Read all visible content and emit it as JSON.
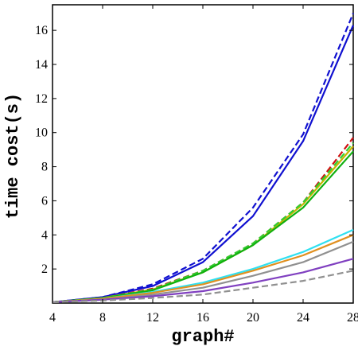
{
  "chart_data": {
    "type": "line",
    "title": "",
    "xlabel": "graph#",
    "ylabel": "time cost(s)",
    "x": [
      4,
      8,
      12,
      16,
      20,
      24,
      28
    ],
    "xlim": [
      4,
      28
    ],
    "ylim": [
      0,
      17.5
    ],
    "xticks": [
      "4",
      "8",
      "12",
      "16",
      "20",
      "24",
      "28"
    ],
    "yticks": [
      "2",
      "4",
      "6",
      "8",
      "10",
      "12",
      "14",
      "16"
    ],
    "grid": false,
    "legend": "none",
    "series": [
      {
        "color": "#1010d0",
        "style": "solid",
        "values": [
          0.05,
          0.35,
          1.0,
          2.4,
          5.1,
          9.5,
          16.3
        ]
      },
      {
        "color": "#1010d0",
        "style": "dashed",
        "values": [
          0.05,
          0.35,
          1.1,
          2.6,
          5.6,
          9.9,
          17.0
        ]
      },
      {
        "color": "#d01010",
        "style": "dashed",
        "values": [
          0.05,
          0.3,
          0.85,
          1.9,
          3.5,
          5.9,
          9.7
        ]
      },
      {
        "color": "#c8b400",
        "style": "solid",
        "values": [
          0.05,
          0.3,
          0.8,
          1.8,
          3.4,
          5.8,
          9.2
        ]
      },
      {
        "color": "#30d030",
        "style": "dashed",
        "values": [
          0.05,
          0.3,
          0.8,
          1.9,
          3.5,
          5.9,
          9.4
        ]
      },
      {
        "color": "#10b010",
        "style": "solid",
        "values": [
          0.05,
          0.28,
          0.75,
          1.8,
          3.4,
          5.6,
          8.9
        ]
      },
      {
        "color": "#30e0f0",
        "style": "solid",
        "values": [
          0.05,
          0.25,
          0.65,
          1.2,
          2.0,
          3.0,
          4.3
        ]
      },
      {
        "color": "#e09020",
        "style": "solid",
        "values": [
          0.05,
          0.25,
          0.6,
          1.1,
          1.9,
          2.8,
          4.0
        ]
      },
      {
        "color": "#909090",
        "style": "solid",
        "values": [
          0.05,
          0.2,
          0.5,
          0.9,
          1.6,
          2.4,
          3.6
        ]
      },
      {
        "color": "#8040c0",
        "style": "solid",
        "values": [
          0.05,
          0.2,
          0.4,
          0.7,
          1.2,
          1.8,
          2.6
        ]
      },
      {
        "color": "#909090",
        "style": "dashed",
        "values": [
          0.05,
          0.15,
          0.3,
          0.5,
          0.9,
          1.3,
          1.9
        ]
      }
    ]
  }
}
